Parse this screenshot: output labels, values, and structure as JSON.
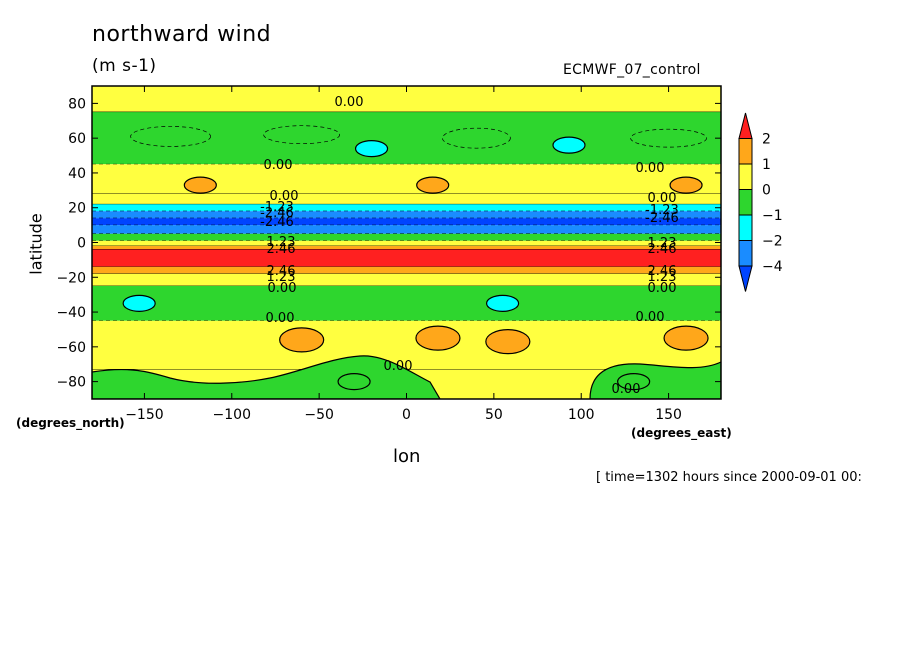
{
  "chart_data": {
    "type": "heatmap",
    "title": "northward wind",
    "units": "(m s-1)",
    "dataset": "ECMWF_07_control",
    "xlabel": "lon",
    "ylabel": "latitude",
    "x_unit_label": "(degrees_east)",
    "y_unit_label": "(degrees_north)",
    "time_label": "[ time=1302 hours since 2000-09-01 00:",
    "xlim": [
      -180,
      180
    ],
    "ylim": [
      -90,
      90
    ],
    "x_ticks": [
      -150,
      -100,
      -50,
      0,
      50,
      100,
      150
    ],
    "y_ticks": [
      80,
      60,
      40,
      20,
      0,
      -20,
      -40,
      -60,
      -80
    ],
    "colorbar_levels": [
      "2",
      "1",
      "0",
      "−1",
      "−2",
      "−4"
    ],
    "colorbar_colors": [
      "#ff2020",
      "#ffa71a",
      "#ffff40",
      "#2ed62e",
      "#00ffff",
      "#1a8cff",
      "#0044ff"
    ],
    "latitude_bands": [
      {
        "lat_top": 90,
        "lat_bottom": 75,
        "category": "0 to 1"
      },
      {
        "lat_top": 75,
        "lat_bottom": 45,
        "category": "-1 to 0"
      },
      {
        "lat_top": 45,
        "lat_bottom": 28,
        "category": "0 to 1"
      },
      {
        "lat_top": 28,
        "lat_bottom": 22,
        "category": "0 to 1"
      },
      {
        "lat_top": 22,
        "lat_bottom": 18,
        "category": "-2 to -1"
      },
      {
        "lat_top": 18,
        "lat_bottom": 14,
        "category": "-4 to -2"
      },
      {
        "lat_top": 14,
        "lat_bottom": 10,
        "category": "< -4"
      },
      {
        "lat_top": 10,
        "lat_bottom": 5,
        "category": "-4 to -2"
      },
      {
        "lat_top": 5,
        "lat_bottom": 1,
        "category": "-1 to 0"
      },
      {
        "lat_top": 1,
        "lat_bottom": -2,
        "category": "0 to 1"
      },
      {
        "lat_top": -2,
        "lat_bottom": -4,
        "category": "1 to 2"
      },
      {
        "lat_top": -4,
        "lat_bottom": -14,
        "category": "> 2"
      },
      {
        "lat_top": -14,
        "lat_bottom": -18,
        "category": "1 to 2"
      },
      {
        "lat_top": -18,
        "lat_bottom": -25,
        "category": "0 to 1"
      },
      {
        "lat_top": -25,
        "lat_bottom": -45,
        "category": "-1 to 0"
      },
      {
        "lat_top": -45,
        "lat_bottom": -73,
        "category": "0 to 1"
      },
      {
        "lat_top": -73,
        "lat_bottom": -90,
        "category": "mixed 0 to 1 / -1 to 0"
      }
    ],
    "blobs": [
      {
        "lon": -118,
        "lat": 33,
        "category": "1 to 2"
      },
      {
        "lon": 15,
        "lat": 33,
        "category": "1 to 2"
      },
      {
        "lon": 160,
        "lat": 33,
        "category": "1 to 2"
      },
      {
        "lon": -20,
        "lat": 54,
        "category": "-2 to -1"
      },
      {
        "lon": 93,
        "lat": 56,
        "category": "-2 to -1"
      },
      {
        "lon": -153,
        "lat": -35,
        "category": "-2 to -1"
      },
      {
        "lon": 55,
        "lat": -35,
        "category": "-2 to -1"
      },
      {
        "lon": -60,
        "lat": -56,
        "category": "1 to 2"
      },
      {
        "lon": 18,
        "lat": -55,
        "category": "1 to 2"
      },
      {
        "lon": 58,
        "lat": -57,
        "category": "1 to 2"
      },
      {
        "lon": 160,
        "lat": -55,
        "category": "1 to 2"
      },
      {
        "lon": -30,
        "lat": -80,
        "category": "-1 to 0"
      },
      {
        "lon": 130,
        "lat": -80,
        "category": "-1 to 0"
      }
    ],
    "contour_labels": [
      "0.00",
      "-1.23",
      "-2.46",
      "1.23",
      "2.46"
    ],
    "grid": false
  }
}
